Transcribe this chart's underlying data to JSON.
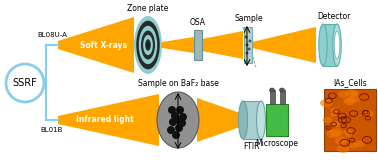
{
  "bg_color": "#ffffff",
  "orange": "#FFA500",
  "light_blue": "#87CEEB",
  "teal": "#8ECECE",
  "teal_dark": "#5FAFAF",
  "black": "#000000",
  "figsize": [
    3.78,
    1.63
  ],
  "dpi": 100,
  "ssrf_label": "SSRF",
  "bl1_label": "BL08U-A",
  "bl2_label": "BL01B",
  "ray1_label": "Soft X-rays",
  "ray2_label": "Infrared light",
  "zoneplate_label": "Zone plate",
  "osa_label": "OSA",
  "sample_label": "Sample",
  "detector_label": "Detector",
  "baf2_label": "Sample on BaF₂ base",
  "ftir_label": "FTIR",
  "microscope_label": "Microscope",
  "cells_label": "IAs_Cells"
}
